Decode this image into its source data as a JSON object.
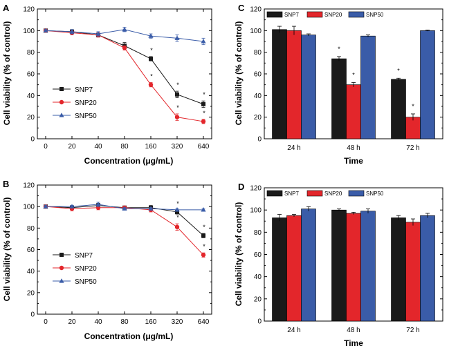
{
  "chart_data": [
    {
      "panel": "A",
      "type": "line",
      "xlabel": "Concentration (μg/mL)",
      "ylabel": "Cell viability (% of control)",
      "categories": [
        "0",
        "20",
        "40",
        "80",
        "160",
        "320",
        "640"
      ],
      "ylim": [
        0,
        120
      ],
      "yticks": [
        "0",
        "20",
        "40",
        "60",
        "80",
        "100",
        "120"
      ],
      "legend_position": "left",
      "series": [
        {
          "name": "SNP7",
          "marker": "square",
          "color": "#1a1a1a",
          "values": [
            100,
            99,
            96,
            86,
            74,
            41,
            32
          ],
          "errors": [
            1,
            2,
            2,
            3,
            2,
            3,
            3
          ]
        },
        {
          "name": "SNP20",
          "marker": "circle",
          "color": "#e3262b",
          "values": [
            100,
            98,
            96,
            84,
            50,
            20,
            16
          ],
          "errors": [
            1,
            2,
            2,
            2,
            2,
            3,
            2
          ]
        },
        {
          "name": "SNP50",
          "marker": "triangle",
          "color": "#3a5ca8",
          "values": [
            100,
            99,
            97,
            101,
            95,
            93,
            90
          ],
          "errors": [
            1,
            2,
            2,
            2,
            2,
            3,
            3
          ]
        }
      ],
      "significance": [
        {
          "series": "SNP7",
          "index": 4,
          "label": "*"
        },
        {
          "series": "SNP20",
          "index": 4,
          "label": "*"
        },
        {
          "series": "SNP7",
          "index": 5,
          "label": "*"
        },
        {
          "series": "SNP20",
          "index": 5,
          "label": "*"
        },
        {
          "series": "SNP7",
          "index": 6,
          "label": "*"
        },
        {
          "series": "SNP20",
          "index": 6,
          "label": "*"
        }
      ]
    },
    {
      "panel": "B",
      "type": "line",
      "xlabel": "Concentration (μg/mL)",
      "ylabel": "Cell viability (% of control)",
      "categories": [
        "0",
        "20",
        "40",
        "80",
        "160",
        "320",
        "640"
      ],
      "ylim": [
        0,
        120
      ],
      "yticks": [
        "0",
        "20",
        "40",
        "60",
        "80",
        "100",
        "120"
      ],
      "legend_position": "left",
      "series": [
        {
          "name": "SNP7",
          "marker": "square",
          "color": "#1a1a1a",
          "values": [
            100,
            99,
            101,
            99,
            99,
            95,
            73
          ],
          "errors": [
            1,
            2,
            2,
            1,
            2,
            2,
            2
          ]
        },
        {
          "name": "SNP20",
          "marker": "circle",
          "color": "#e3262b",
          "values": [
            100,
            98,
            99,
            99,
            97,
            81,
            55
          ],
          "errors": [
            1,
            2,
            2,
            1,
            2,
            3,
            2
          ]
        },
        {
          "name": "SNP50",
          "marker": "triangle",
          "color": "#3a5ca8",
          "values": [
            100,
            100,
            102,
            98,
            98,
            97,
            97
          ],
          "errors": [
            1,
            1,
            2,
            1,
            1,
            1,
            1
          ]
        }
      ],
      "significance": [
        {
          "series": "SNP7",
          "index": 5,
          "label": "*"
        },
        {
          "series": "SNP20",
          "index": 5,
          "label": "*"
        },
        {
          "series": "SNP7",
          "index": 6,
          "label": "*"
        },
        {
          "series": "SNP20",
          "index": 6,
          "label": "*"
        }
      ]
    },
    {
      "panel": "C",
      "type": "bar",
      "xlabel": "Time",
      "ylabel": "Cell viability (% of control)",
      "categories": [
        "24 h",
        "48 h",
        "72 h"
      ],
      "ylim": [
        0,
        120
      ],
      "yticks": [
        "0",
        "20",
        "40",
        "60",
        "80",
        "100",
        "120"
      ],
      "legend_position": "top",
      "series": [
        {
          "name": "SNP7",
          "color": "#1a1a1a",
          "values": [
            101,
            74,
            55
          ],
          "errors": [
            3,
            2,
            1
          ]
        },
        {
          "name": "SNP20",
          "color": "#e3262b",
          "values": [
            100,
            50,
            20
          ],
          "errors": [
            4,
            2,
            3
          ]
        },
        {
          "name": "SNP50",
          "color": "#3a5ca8",
          "values": [
            96,
            95,
            100
          ],
          "errors": [
            1,
            1,
            0.5
          ]
        }
      ],
      "significance": [
        {
          "series": "SNP7",
          "index": 1,
          "label": "*"
        },
        {
          "series": "SNP20",
          "index": 1,
          "label": "*"
        },
        {
          "series": "SNP7",
          "index": 2,
          "label": "*"
        },
        {
          "series": "SNP20",
          "index": 2,
          "label": "*"
        }
      ]
    },
    {
      "panel": "D",
      "type": "bar",
      "xlabel": "Time",
      "ylabel": "Cell viability (% of control)",
      "categories": [
        "24 h",
        "48 h",
        "72 h"
      ],
      "ylim": [
        0,
        120
      ],
      "yticks": [
        "0",
        "20",
        "40",
        "60",
        "80",
        "100",
        "120"
      ],
      "legend_position": "top",
      "series": [
        {
          "name": "SNP7",
          "color": "#1a1a1a",
          "values": [
            93,
            100,
            93
          ],
          "errors": [
            3,
            1,
            2
          ]
        },
        {
          "name": "SNP20",
          "color": "#e3262b",
          "values": [
            95,
            97,
            89
          ],
          "errors": [
            1,
            1,
            3
          ]
        },
        {
          "name": "SNP50",
          "color": "#3a5ca8",
          "values": [
            101,
            99,
            95
          ],
          "errors": [
            2,
            2,
            2
          ]
        }
      ],
      "significance": []
    }
  ]
}
